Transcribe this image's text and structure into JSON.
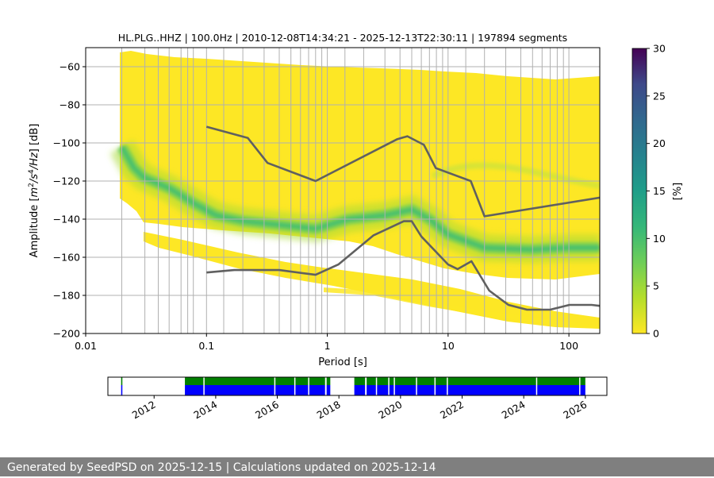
{
  "chart_data": {
    "type": "heatmap",
    "title": "HL.PLG..HHZ | 100.0Hz | 2010-12-08T14:34:21 - 2025-12-13T22:30:11 | 197894 segments",
    "xlabel": "Period [s]",
    "ylabel_parts": [
      "Amplitude [",
      "m",
      "2",
      "/s",
      "4",
      "/Hz",
      "] [dB]"
    ],
    "x_scale": "log",
    "xlim": [
      0.01,
      180
    ],
    "ylim": [
      -200,
      -50
    ],
    "x_ticks": [
      {
        "value": 0.01,
        "label": "0.01"
      },
      {
        "value": 0.1,
        "label": "0.1"
      },
      {
        "value": 1,
        "label": "1"
      },
      {
        "value": 10,
        "label": "10"
      },
      {
        "value": 100,
        "label": "100"
      }
    ],
    "y_ticks": [
      {
        "value": -60,
        "label": "−60"
      },
      {
        "value": -80,
        "label": "−80"
      },
      {
        "value": -100,
        "label": "−100"
      },
      {
        "value": -120,
        "label": "−120"
      },
      {
        "value": -140,
        "label": "−140"
      },
      {
        "value": -160,
        "label": "−160"
      },
      {
        "value": -180,
        "label": "−180"
      },
      {
        "value": -200,
        "label": "−200"
      }
    ],
    "vertical_grid_periods": [
      0.01,
      0.0199,
      0.0309,
      0.0399,
      0.0491,
      0.0616,
      0.0699,
      0.0778,
      0.1,
      0.1389,
      0.2,
      0.3,
      0.4,
      0.5,
      0.6,
      0.7,
      0.8,
      0.9,
      1,
      1.4,
      2,
      3,
      4,
      5,
      6,
      7,
      8,
      9,
      10,
      14,
      20,
      30,
      40,
      50,
      60,
      70,
      80,
      90,
      100
    ],
    "colorbar": {
      "label": "[%]",
      "min": 0,
      "max": 30,
      "ticks": [
        {
          "value": 0,
          "label": "0"
        },
        {
          "value": 5,
          "label": "5"
        },
        {
          "value": 10,
          "label": "10"
        },
        {
          "value": 15,
          "label": "15"
        },
        {
          "value": 20,
          "label": "20"
        },
        {
          "value": 25,
          "label": "25"
        },
        {
          "value": 30,
          "label": "30"
        }
      ]
    },
    "density_ridge": [
      {
        "period": 0.0199,
        "db": -102,
        "pct": 10
      },
      {
        "period": 0.025,
        "db": -113,
        "pct": 9
      },
      {
        "period": 0.03,
        "db": -118,
        "pct": 8
      },
      {
        "period": 0.05,
        "db": -124,
        "pct": 7
      },
      {
        "period": 0.08,
        "db": -132,
        "pct": 7
      },
      {
        "period": 0.12,
        "db": -138,
        "pct": 7
      },
      {
        "period": 0.2,
        "db": -141,
        "pct": 7
      },
      {
        "period": 0.4,
        "db": -143,
        "pct": 6
      },
      {
        "period": 0.8,
        "db": -145,
        "pct": 6
      },
      {
        "period": 1.5,
        "db": -140,
        "pct": 5
      },
      {
        "period": 3,
        "db": -138,
        "pct": 6
      },
      {
        "period": 5,
        "db": -135,
        "pct": 8
      },
      {
        "period": 7,
        "db": -140,
        "pct": 6
      },
      {
        "period": 10,
        "db": -148,
        "pct": 5
      },
      {
        "period": 20,
        "db": -155,
        "pct": 4
      },
      {
        "period": 50,
        "db": -156,
        "pct": 4
      },
      {
        "period": 100,
        "db": -155,
        "pct": 4
      },
      {
        "period": 180,
        "db": -155,
        "pct": 4
      }
    ],
    "series": [
      {
        "name": "new-high-noise-model",
        "points": [
          [
            0.1,
            -91.5
          ],
          [
            0.22,
            -97.4
          ],
          [
            0.32,
            -110.5
          ],
          [
            0.8,
            -120
          ],
          [
            3.8,
            -98
          ],
          [
            4.6,
            -96.5
          ],
          [
            6.3,
            -101
          ],
          [
            7.9,
            -113.2
          ],
          [
            15.4,
            -120
          ],
          [
            20,
            -138.5
          ],
          [
            180,
            -128.7
          ]
        ]
      },
      {
        "name": "new-low-noise-model",
        "points": [
          [
            0.1,
            -168
          ],
          [
            0.17,
            -166.7
          ],
          [
            0.4,
            -166.7
          ],
          [
            0.8,
            -169.2
          ],
          [
            1.24,
            -163.7
          ],
          [
            2.4,
            -148.6
          ],
          [
            4.3,
            -141.1
          ],
          [
            5,
            -141.1
          ],
          [
            6,
            -149.1
          ],
          [
            10,
            -163.8
          ],
          [
            12,
            -166.2
          ],
          [
            15.6,
            -162.1
          ],
          [
            21.9,
            -177.5
          ],
          [
            31.6,
            -185
          ],
          [
            45,
            -187.5
          ],
          [
            70,
            -187.5
          ],
          [
            101,
            -185
          ],
          [
            154,
            -185
          ],
          [
            180,
            -185.5
          ]
        ]
      }
    ],
    "availability": {
      "year_ticks": [
        "2012",
        "2014",
        "2016",
        "2018",
        "2020",
        "2022",
        "2024",
        "2026"
      ],
      "year_values": [
        2012,
        2014,
        2016,
        2018,
        2020,
        2022,
        2024,
        2026
      ],
      "axis_range_years": [
        2010.5,
        2026.7
      ],
      "data_spans_years": [
        [
          2010.93,
          2010.97
        ],
        [
          2013.0,
          2017.55
        ],
        [
          2017.6,
          2017.72
        ],
        [
          2018.5,
          2018.85
        ],
        [
          2018.9,
          2026.0
        ]
      ],
      "gaps_years": [
        2013.6,
        2015.9,
        2016.55,
        2017.0,
        2019.2,
        2019.6,
        2019.78,
        2020.5,
        2021.1,
        2021.5,
        2024.4,
        2025.8
      ],
      "colors": {
        "processed": "#0000ff",
        "available": "#008000"
      }
    },
    "colors": {
      "line": "#606060",
      "grid": "#b0b0b0",
      "missing": "#ffffff"
    }
  },
  "footer": {
    "text": "Generated by SeedPSD on 2025-12-15 | Calculations updated on 2025-12-14"
  }
}
